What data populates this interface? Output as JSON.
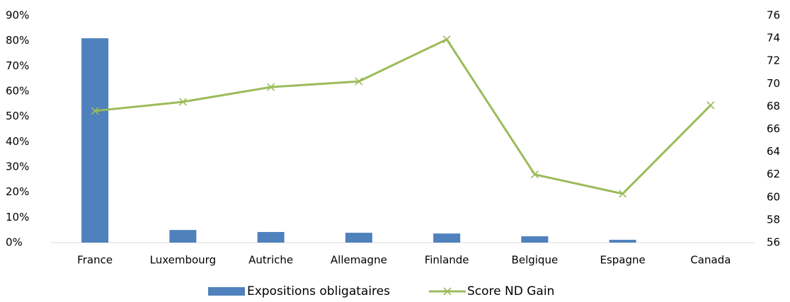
{
  "chart_data": {
    "type": "bar_line",
    "categories": [
      "France",
      "Luxembourg",
      "Autriche",
      "Allemagne",
      "Finlande",
      "Belgique",
      "Espagne",
      "Canada"
    ],
    "series": [
      {
        "name": "Expositions obligataires",
        "type": "bar",
        "color": "#4f81bd",
        "values": [
          81,
          5,
          4.2,
          3.9,
          3.6,
          2.5,
          1.1,
          0
        ]
      },
      {
        "name": "Score ND Gain",
        "type": "line",
        "axis": "y2",
        "color": "#9bbb59",
        "values": [
          67.6,
          68.4,
          69.7,
          70.2,
          73.9,
          62,
          60.3,
          68.1
        ]
      }
    ],
    "ylim": [
      0,
      90
    ],
    "yticks": [
      {
        "value": 0,
        "label": "0%"
      },
      {
        "value": 10,
        "label": "10%"
      },
      {
        "value": 20,
        "label": "20%"
      },
      {
        "value": 30,
        "label": "30%"
      },
      {
        "value": 40,
        "label": "40%"
      },
      {
        "value": 50,
        "label": "50%"
      },
      {
        "value": 60,
        "label": "60%"
      },
      {
        "value": 70,
        "label": "70%"
      },
      {
        "value": 80,
        "label": "80%"
      },
      {
        "value": 90,
        "label": "90%"
      }
    ],
    "y2lim": [
      56,
      76
    ],
    "y2ticks": [
      56,
      58,
      60,
      62,
      64,
      66,
      68,
      70,
      72,
      74,
      76
    ],
    "legend": "bottom"
  }
}
